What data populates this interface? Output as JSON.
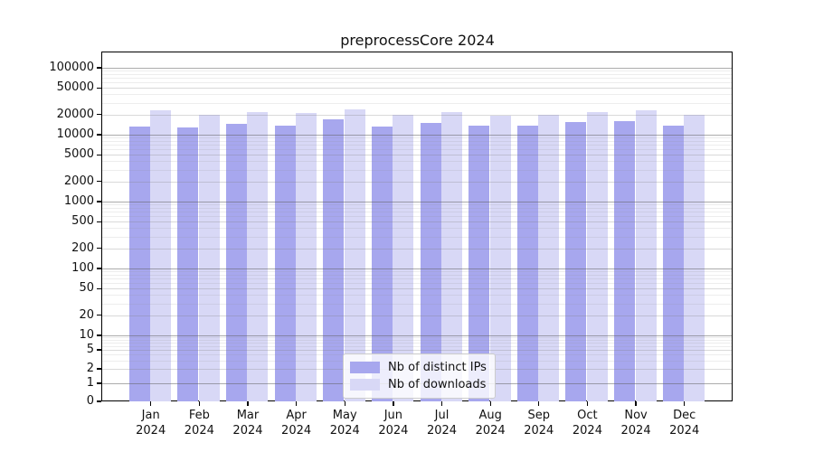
{
  "chart_data": {
    "type": "bar",
    "title": "preprocessCore 2024",
    "categories": [
      "Jan",
      "Feb",
      "Mar",
      "Apr",
      "May",
      "Jun",
      "Jul",
      "Aug",
      "Sep",
      "Oct",
      "Nov",
      "Dec"
    ],
    "x_year_label": "2024",
    "series": [
      {
        "name": "Nb of distinct IPs",
        "color": "#a7a7ee",
        "values": [
          13400,
          13000,
          14500,
          13800,
          17100,
          13100,
          15000,
          13500,
          13800,
          15300,
          16000,
          13800
        ]
      },
      {
        "name": "Nb of downloads",
        "color": "#d8d8f6",
        "values": [
          23400,
          20100,
          22000,
          21200,
          24000,
          20000,
          22100,
          19400,
          19900,
          22000,
          23000,
          20100
        ]
      }
    ],
    "yaxis": {
      "scale": "symlog",
      "tick_values": [
        0,
        1,
        2,
        5,
        10,
        20,
        50,
        100,
        200,
        500,
        1000,
        2000,
        5000,
        10000,
        20000,
        50000,
        100000
      ],
      "tick_labels": [
        "0",
        "1",
        "2",
        "5",
        "10",
        "20",
        "50",
        "100",
        "200",
        "500",
        "1000",
        "2000",
        "5000",
        "10000",
        "20000",
        "50000",
        "100000"
      ],
      "ylim": [
        0,
        170000
      ]
    },
    "grid": true,
    "legend_position": "inside-bottom-center",
    "colors": {
      "spine": "#000000",
      "text": "#111111",
      "background": "#ffffff"
    }
  }
}
